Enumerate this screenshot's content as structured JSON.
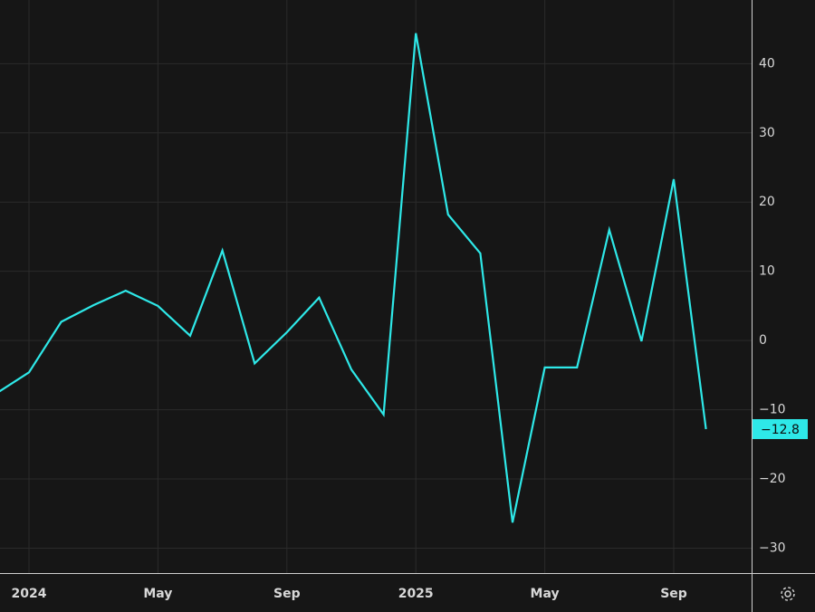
{
  "chart_data": {
    "type": "line",
    "categories": [
      null,
      "2024",
      null,
      null,
      null,
      "May",
      null,
      null,
      null,
      "Sep",
      null,
      null,
      null,
      "2025",
      null,
      null,
      null,
      "May",
      null,
      null,
      null,
      "Sep",
      null
    ],
    "series": [
      {
        "name": null,
        "color": "#2ee8e8",
        "values": [
          -7.6,
          -4.6,
          2.7,
          5.1,
          7.2,
          5.0,
          0.7,
          13.0,
          -3.3,
          1.2,
          6.2,
          -4.2,
          -10.7,
          44.4,
          18.2,
          12.6,
          -26.3,
          -3.9,
          -3.9,
          16.0,
          -0.1,
          23.3,
          -12.8
        ],
        "value_labels": [
          null,
          null,
          null,
          null,
          null,
          null,
          null,
          null,
          null,
          null,
          null,
          null,
          null,
          null,
          null,
          null,
          null,
          null,
          null,
          null,
          null,
          null,
          "−12.8"
        ]
      }
    ],
    "ylim": [
      -33.6,
      49.2
    ],
    "yticks": [
      {
        "value": -30,
        "label": "−30"
      },
      {
        "value": -20,
        "label": "−20"
      },
      {
        "value": -10,
        "label": "−10"
      },
      0,
      10,
      20,
      30,
      40
    ],
    "grid": true
  }
}
